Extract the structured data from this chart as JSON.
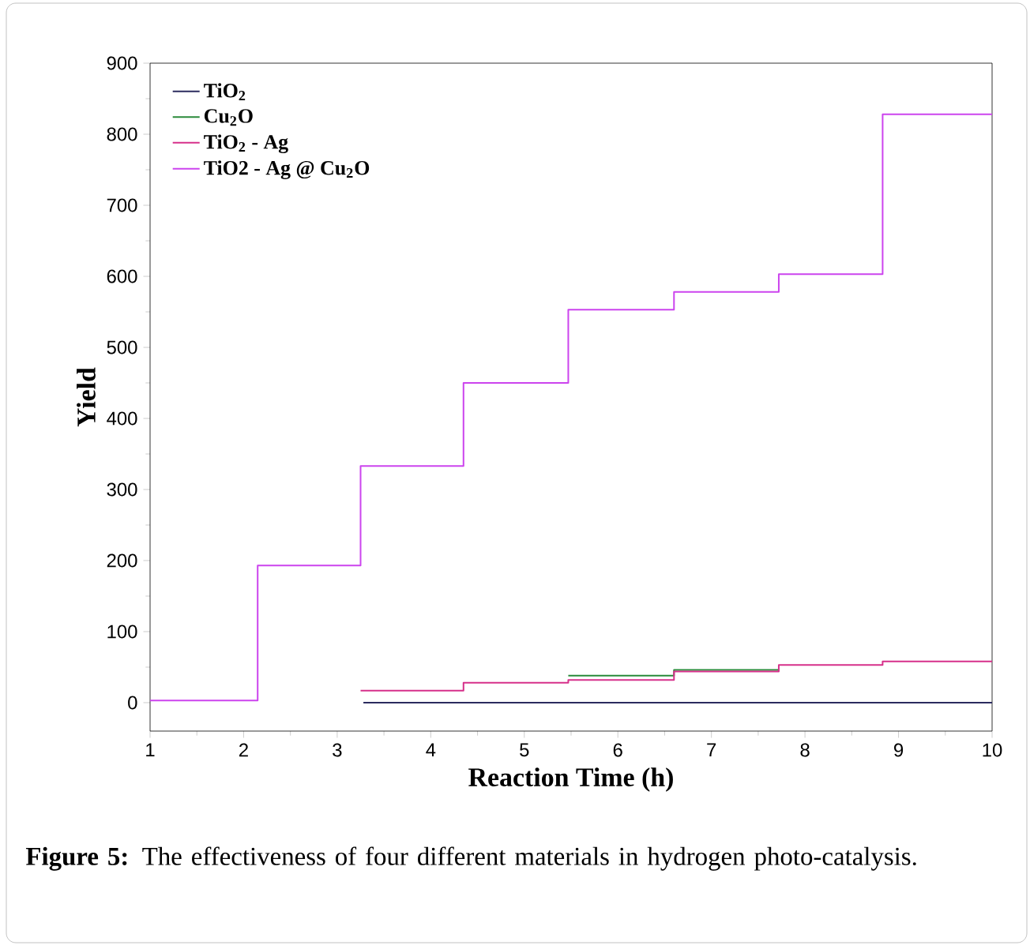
{
  "chart_data": {
    "type": "step",
    "xlabel": "Reaction Time (h)",
    "ylabel": "Yield",
    "xlim": [
      1,
      10
    ],
    "ylim": [
      -40,
      900
    ],
    "xticks": [
      1,
      2,
      3,
      4,
      5,
      6,
      7,
      8,
      9,
      10
    ],
    "yticks": [
      0,
      100,
      200,
      300,
      400,
      500,
      600,
      700,
      800,
      900
    ],
    "legend": "top left",
    "grid": false,
    "annotations": [
      "**Figure 5:** The effectiveness of four different materials in hydrogen photo-catalysis."
    ],
    "series": [
      {
        "name": "TiO$_{2}$",
        "color": "#2b2b5e",
        "x": [
          3.28,
          10
        ],
        "values": [
          0,
          0
        ]
      },
      {
        "name": "Cu$_{2}$O",
        "color": "#2a8a3a",
        "x": [
          5.47,
          6.6,
          7.72
        ],
        "values": [
          38,
          46,
          46
        ]
      },
      {
        "name": "TiO$_{2}$ - Ag",
        "color": "#d6308a",
        "x": [
          3.25,
          4.35,
          5.47,
          6.6,
          7.72,
          8.83,
          10
        ],
        "values": [
          17,
          28,
          32,
          44,
          53,
          58,
          58
        ]
      },
      {
        "name": "TiO2 - Ag @ Cu$_{2}$O",
        "color": "#cc44ee",
        "x": [
          1,
          2.15,
          3.25,
          4.35,
          5.47,
          6.6,
          7.72,
          8.83,
          10
        ],
        "values": [
          3,
          193,
          333,
          450,
          553,
          578,
          603,
          828,
          828
        ]
      }
    ]
  }
}
